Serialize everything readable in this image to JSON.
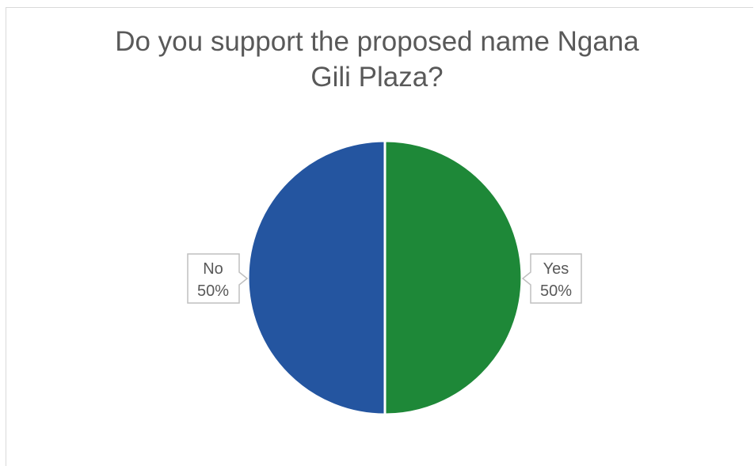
{
  "chart_data": {
    "type": "pie",
    "title": "Do you support the proposed name Ngana Gili Plaza?",
    "title_lines": [
      "Do you support the proposed name Ngana",
      "Gili Plaza?"
    ],
    "slices": [
      {
        "label": "Yes",
        "value": 50,
        "percent_label": "50%",
        "color": "#1e8838"
      },
      {
        "label": "No",
        "value": 50,
        "percent_label": "50%",
        "color": "#2455a0"
      }
    ],
    "legend": "none",
    "data_labels": "callouts"
  }
}
